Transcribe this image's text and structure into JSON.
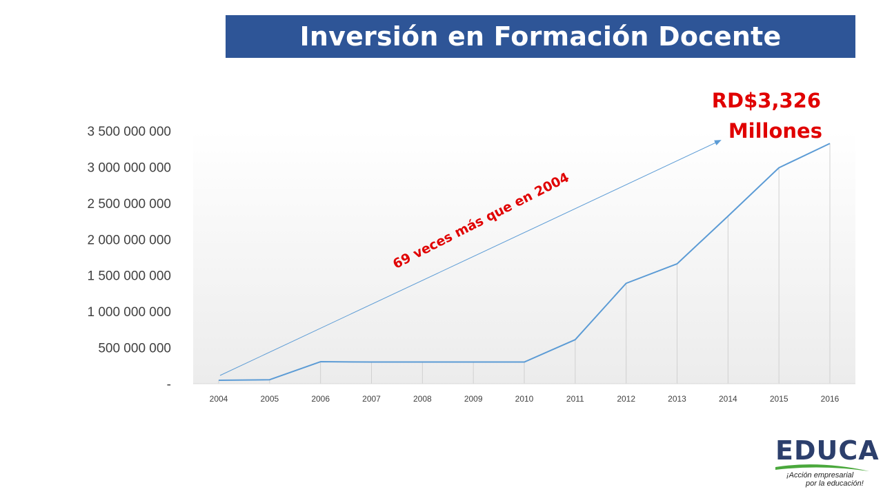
{
  "title": "Inversión en Formación Docente",
  "callout": {
    "line1": "RD$3,326",
    "line2": "Millones"
  },
  "arrow_label": "69 veces más que en 2004",
  "logo": {
    "word": "EDUCA",
    "tagline1": "¡Acción empresarial",
    "tagline2": "por la educación!"
  },
  "colors": {
    "title_bg": "#2e5597",
    "title_text": "#ffffff",
    "series": "#5b9bd5",
    "callout": "#e00000",
    "logo_blue": "#2c3f6c",
    "logo_green": "#4aa83c"
  },
  "chart_data": {
    "type": "line",
    "categories": [
      "2004",
      "2005",
      "2006",
      "2007",
      "2008",
      "2009",
      "2010",
      "2011",
      "2012",
      "2013",
      "2014",
      "2015",
      "2016"
    ],
    "values": [
      48000000,
      55000000,
      305000000,
      300000000,
      300000000,
      300000000,
      300000000,
      610000000,
      1390000000,
      1660000000,
      2320000000,
      2990000000,
      3326000000
    ],
    "ylim": [
      0,
      3500000000
    ],
    "yticks": [
      0,
      500000000,
      1000000000,
      1500000000,
      2000000000,
      2500000000,
      3000000000,
      3500000000
    ],
    "ytick_labels": [
      "-",
      "500 000 000",
      "1 000 000 000",
      "1 500 000 000",
      "2 000 000 000",
      "2 500 000 000",
      "3 000 000 000",
      "3 500 000 000"
    ],
    "xlabel": "",
    "ylabel": "",
    "grid": false,
    "drop_lines": true
  }
}
